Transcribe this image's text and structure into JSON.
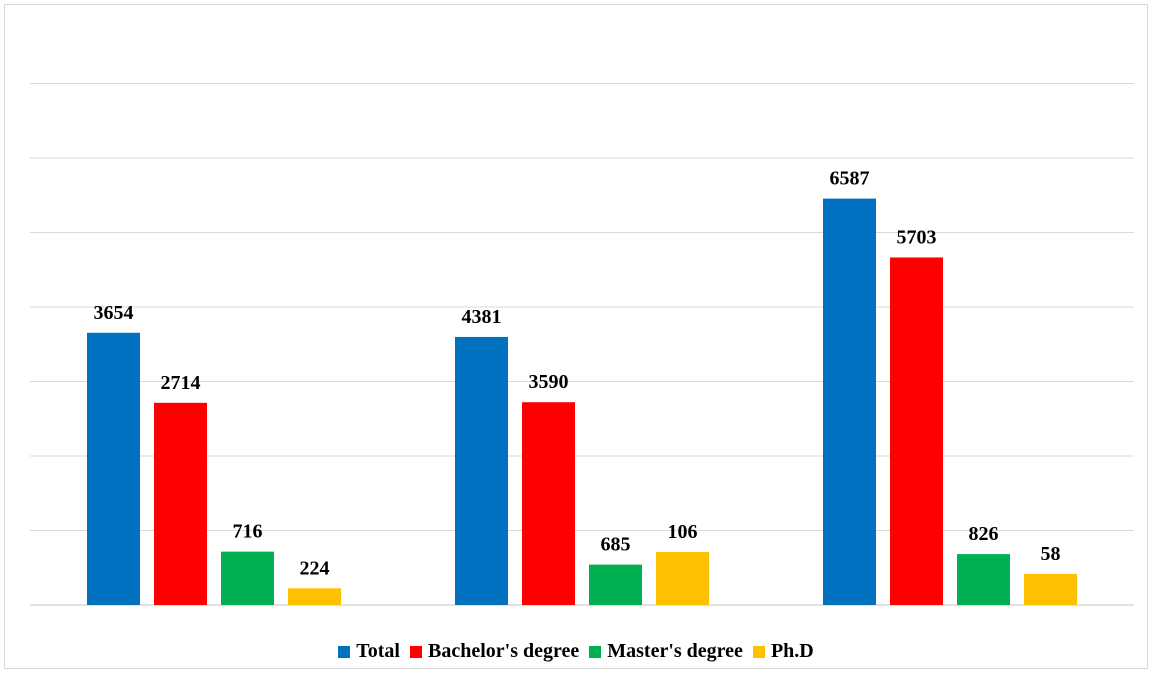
{
  "chart_data": {
    "type": "bar",
    "title": "",
    "xlabel": "",
    "ylabel": "",
    "categories": [
      "",
      "",
      ""
    ],
    "ylim": [
      0,
      7000
    ],
    "grid": true,
    "legend_position": "bottom",
    "series": [
      {
        "name": "Total",
        "color": "#0070C0",
        "values": [
          3654,
          4381,
          6587
        ]
      },
      {
        "name": "Bachelor's degree",
        "color": "#FF0000",
        "values": [
          2714,
          3590,
          5703
        ]
      },
      {
        "name": "Master's degree",
        "color": "#00B050",
        "values": [
          716,
          685,
          826
        ]
      },
      {
        "name": "Ph.D",
        "color": "#FFC000",
        "values": [
          224,
          106,
          58
        ]
      }
    ],
    "bar_heights_shown": [
      [
        3654,
        2714,
        716,
        224
      ],
      [
        3598,
        2722,
        542,
        711
      ],
      [
        5455,
        4665,
        683,
        417
      ]
    ]
  }
}
